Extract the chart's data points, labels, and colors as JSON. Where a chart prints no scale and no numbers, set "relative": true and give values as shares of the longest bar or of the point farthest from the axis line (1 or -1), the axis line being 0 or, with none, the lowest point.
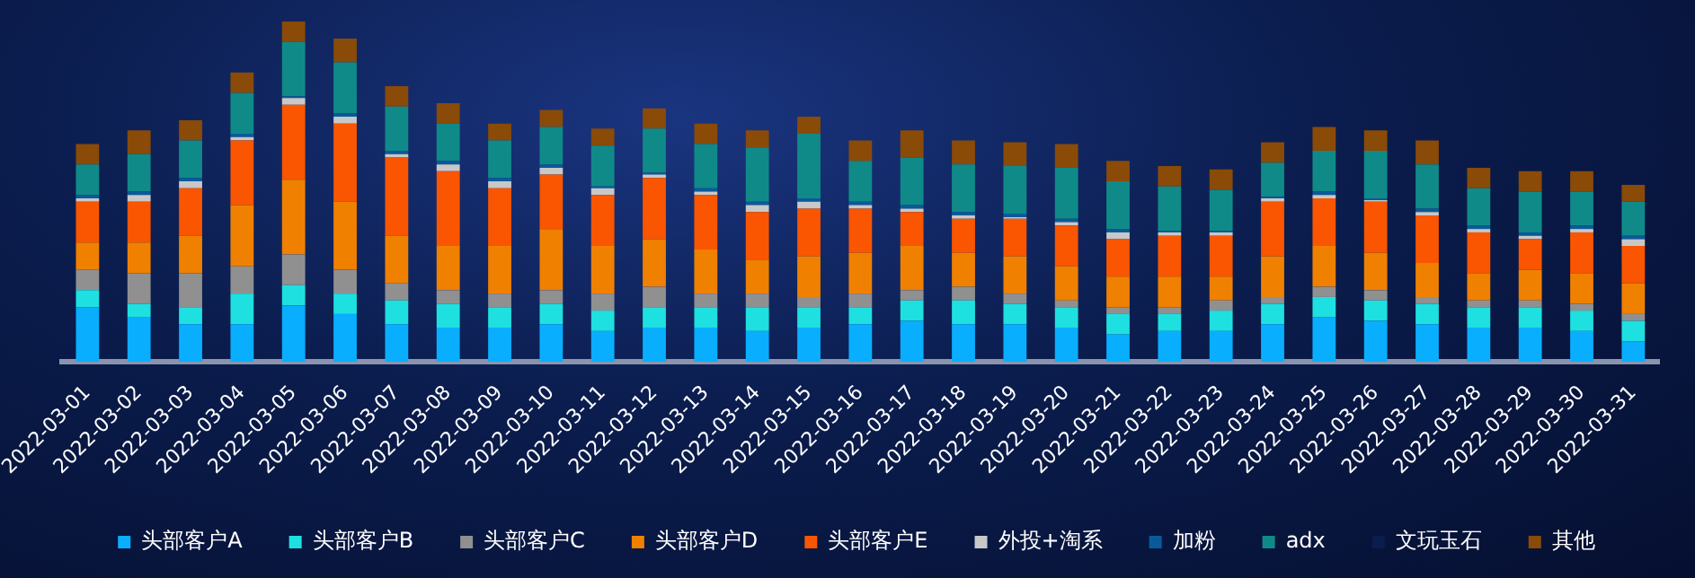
{
  "chart_data": {
    "type": "bar",
    "stacked": true,
    "relative": true,
    "legend": "bottom",
    "grid": false,
    "tick_labels": "x",
    "categories": [
      "2022-03-01",
      "2022-03-02",
      "2022-03-03",
      "2022-03-04",
      "2022-03-05",
      "2022-03-06",
      "2022-03-07",
      "2022-03-08",
      "2022-03-09",
      "2022-03-10",
      "2022-03-11",
      "2022-03-12",
      "2022-03-13",
      "2022-03-14",
      "2022-03-15",
      "2022-03-16",
      "2022-03-17",
      "2022-03-18",
      "2022-03-19",
      "2022-03-20",
      "2022-03-21",
      "2022-03-22",
      "2022-03-23",
      "2022-03-24",
      "2022-03-25",
      "2022-03-26",
      "2022-03-27",
      "2022-03-28",
      "2022-03-29",
      "2022-03-30",
      "2022-03-31"
    ],
    "series": [
      {
        "name": "头部客户A",
        "color": "#0aaeff",
        "values": [
          0.16,
          0.13,
          0.11,
          0.11,
          0.165,
          0.14,
          0.11,
          0.1,
          0.1,
          0.11,
          0.09,
          0.1,
          0.1,
          0.09,
          0.1,
          0.11,
          0.12,
          0.11,
          0.11,
          0.1,
          0.08,
          0.09,
          0.09,
          0.11,
          0.13,
          0.12,
          0.11,
          0.1,
          0.1,
          0.09,
          0.06
        ]
      },
      {
        "name": "头部客户B",
        "color": "#1ee0e0",
        "values": [
          0.05,
          0.04,
          0.05,
          0.09,
          0.06,
          0.06,
          0.07,
          0.07,
          0.06,
          0.06,
          0.06,
          0.06,
          0.06,
          0.07,
          0.06,
          0.05,
          0.06,
          0.07,
          0.06,
          0.06,
          0.06,
          0.05,
          0.06,
          0.06,
          0.06,
          0.06,
          0.06,
          0.06,
          0.06,
          0.06,
          0.06
        ]
      },
      {
        "name": "头部客户C",
        "color": "#909090",
        "values": [
          0.06,
          0.09,
          0.1,
          0.08,
          0.09,
          0.07,
          0.05,
          0.04,
          0.04,
          0.04,
          0.05,
          0.06,
          0.04,
          0.04,
          0.03,
          0.04,
          0.03,
          0.04,
          0.03,
          0.02,
          0.02,
          0.02,
          0.03,
          0.02,
          0.03,
          0.03,
          0.02,
          0.02,
          0.02,
          0.02,
          0.02
        ]
      },
      {
        "name": "头部客户D",
        "color": "#f08000",
        "values": [
          0.08,
          0.09,
          0.11,
          0.18,
          0.22,
          0.2,
          0.14,
          0.13,
          0.14,
          0.18,
          0.14,
          0.14,
          0.13,
          0.1,
          0.12,
          0.12,
          0.13,
          0.1,
          0.11,
          0.1,
          0.09,
          0.09,
          0.07,
          0.12,
          0.12,
          0.11,
          0.1,
          0.08,
          0.09,
          0.09,
          0.09
        ]
      },
      {
        "name": "头部客户E",
        "color": "#fa5500",
        "values": [
          0.12,
          0.12,
          0.14,
          0.19,
          0.22,
          0.23,
          0.23,
          0.22,
          0.17,
          0.16,
          0.15,
          0.18,
          0.16,
          0.14,
          0.14,
          0.13,
          0.1,
          0.1,
          0.11,
          0.12,
          0.11,
          0.12,
          0.12,
          0.16,
          0.14,
          0.15,
          0.14,
          0.12,
          0.09,
          0.12,
          0.11
        ]
      },
      {
        "name": "外投+淘系",
        "color": "#c8c8c8",
        "values": [
          0.01,
          0.02,
          0.02,
          0.01,
          0.02,
          0.02,
          0.01,
          0.02,
          0.02,
          0.02,
          0.02,
          0.01,
          0.01,
          0.02,
          0.02,
          0.01,
          0.01,
          0.01,
          0.005,
          0.01,
          0.02,
          0.01,
          0.01,
          0.01,
          0.01,
          0.005,
          0.01,
          0.01,
          0.01,
          0.01,
          0.02
        ]
      },
      {
        "name": "加粉",
        "color": "#0a5a9a",
        "values": [
          0.01,
          0.01,
          0.01,
          0.01,
          0.005,
          0.01,
          0.01,
          0.01,
          0.01,
          0.01,
          0.005,
          0.005,
          0.01,
          0.01,
          0.01,
          0.01,
          0.01,
          0.01,
          0.01,
          0.01,
          0.01,
          0.005,
          0.005,
          0.005,
          0.01,
          0.005,
          0.01,
          0.01,
          0.01,
          0.01,
          0.01
        ]
      },
      {
        "name": "adx",
        "color": "#108a88",
        "values": [
          0.09,
          0.11,
          0.11,
          0.12,
          0.16,
          0.15,
          0.13,
          0.11,
          0.11,
          0.11,
          0.12,
          0.13,
          0.13,
          0.16,
          0.19,
          0.12,
          0.14,
          0.14,
          0.14,
          0.15,
          0.14,
          0.13,
          0.12,
          0.1,
          0.12,
          0.14,
          0.13,
          0.11,
          0.12,
          0.1,
          0.1
        ]
      },
      {
        "name": "文玩玉石",
        "color": "#0b1d4e",
        "values": [
          null,
          null,
          null,
          null,
          null,
          null,
          null,
          null,
          null,
          null,
          null,
          null,
          null,
          null,
          null,
          null,
          null,
          null,
          null,
          null,
          null,
          null,
          null,
          null,
          null,
          null,
          null,
          null,
          null,
          null,
          null
        ]
      },
      {
        "name": "其他",
        "color": "#8a4a08",
        "values": [
          0.06,
          0.07,
          0.06,
          0.06,
          0.06,
          0.07,
          0.06,
          0.06,
          0.05,
          0.05,
          0.05,
          0.06,
          0.06,
          0.05,
          0.05,
          0.06,
          0.08,
          0.07,
          0.07,
          0.07,
          0.06,
          0.06,
          0.06,
          0.06,
          0.07,
          0.06,
          0.07,
          0.06,
          0.06,
          0.06,
          0.05
        ]
      }
    ]
  }
}
